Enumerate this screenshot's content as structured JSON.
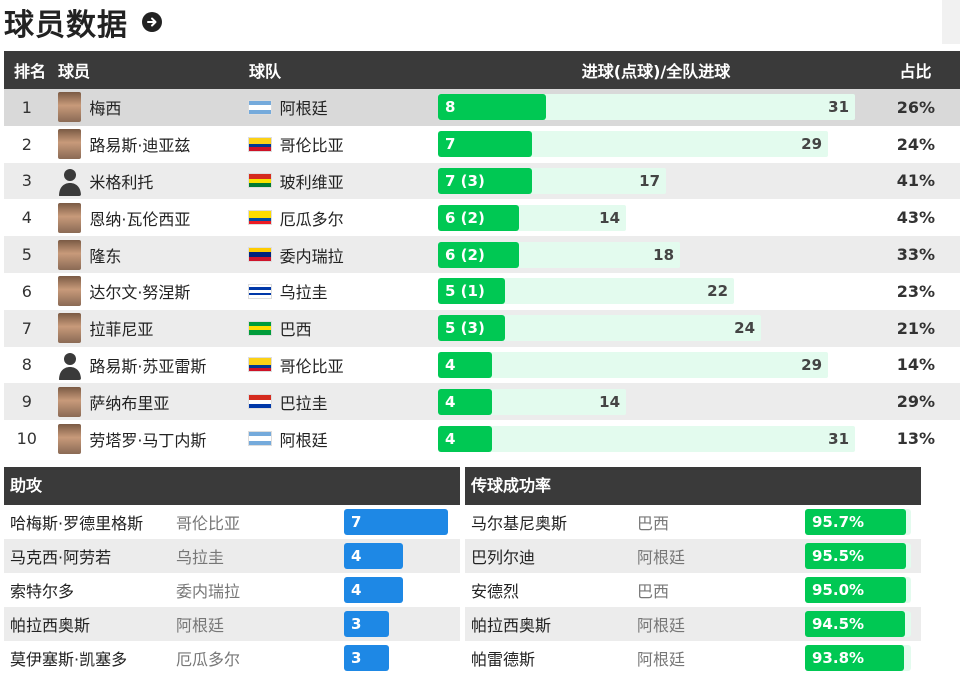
{
  "page": {
    "title": "球员数据"
  },
  "scorers": {
    "headers": {
      "rank": "排名",
      "player": "球员",
      "team": "球队",
      "goals": "进球(点球)/全队进球",
      "pct": "占比"
    },
    "rows": [
      {
        "rank": "1",
        "player": "梅西",
        "team": "阿根廷",
        "goals_label": "8",
        "goals": 8,
        "total": 31,
        "pct": "26%",
        "avatar": "photo",
        "flag": [
          "#75aadb",
          "#ffffff",
          "#75aadb"
        ]
      },
      {
        "rank": "2",
        "player": "路易斯·迪亚兹",
        "team": "哥伦比亚",
        "goals_label": "7",
        "goals": 7,
        "total": 29,
        "pct": "24%",
        "avatar": "photo",
        "flag": [
          "#fcd116",
          "#fcd116",
          "#003893",
          "#ce1126"
        ]
      },
      {
        "rank": "3",
        "player": "米格利托",
        "team": "玻利维亚",
        "goals_label": "7 (3)",
        "goals": 7,
        "total": 17,
        "pct": "41%",
        "avatar": "silhouette",
        "flag": [
          "#d52b1e",
          "#f9e300",
          "#007934"
        ]
      },
      {
        "rank": "4",
        "player": "恩纳·瓦伦西亚",
        "team": "厄瓜多尔",
        "goals_label": "6 (2)",
        "goals": 6,
        "total": 14,
        "pct": "43%",
        "avatar": "photo",
        "flag": [
          "#ffdd00",
          "#ffdd00",
          "#034ea2",
          "#ed1c24"
        ]
      },
      {
        "rank": "5",
        "player": "隆东",
        "team": "委内瑞拉",
        "goals_label": "6 (2)",
        "goals": 6,
        "total": 18,
        "pct": "33%",
        "avatar": "photo",
        "flag": [
          "#ffcc00",
          "#00247d",
          "#cf142b"
        ]
      },
      {
        "rank": "6",
        "player": "达尔文·努涅斯",
        "team": "乌拉圭",
        "goals_label": "5 (1)",
        "goals": 5,
        "total": 22,
        "pct": "23%",
        "avatar": "photo",
        "flag": [
          "#ffffff",
          "#0038a8",
          "#ffffff",
          "#0038a8",
          "#ffffff"
        ]
      },
      {
        "rank": "7",
        "player": "拉菲尼亚",
        "team": "巴西",
        "goals_label": "5 (3)",
        "goals": 5,
        "total": 24,
        "pct": "21%",
        "avatar": "photo",
        "flag": [
          "#009c3b",
          "#ffdf00",
          "#009c3b"
        ]
      },
      {
        "rank": "8",
        "player": "路易斯·苏亚雷斯",
        "team": "哥伦比亚",
        "goals_label": "4",
        "goals": 4,
        "total": 29,
        "pct": "14%",
        "avatar": "silhouette",
        "flag": [
          "#fcd116",
          "#fcd116",
          "#003893",
          "#ce1126"
        ]
      },
      {
        "rank": "9",
        "player": "萨纳布里亚",
        "team": "巴拉圭",
        "goals_label": "4",
        "goals": 4,
        "total": 14,
        "pct": "29%",
        "avatar": "photo",
        "flag": [
          "#d52b1e",
          "#ffffff",
          "#0038a8"
        ]
      },
      {
        "rank": "10",
        "player": "劳塔罗·马丁内斯",
        "team": "阿根廷",
        "goals_label": "4",
        "goals": 4,
        "total": 31,
        "pct": "13%",
        "avatar": "photo",
        "flag": [
          "#75aadb",
          "#ffffff",
          "#75aadb"
        ]
      }
    ],
    "bar_max_total": 32
  },
  "assists": {
    "title": "助攻",
    "rows": [
      {
        "player": "哈梅斯·罗德里格斯",
        "team": "哥伦比亚",
        "label": "7",
        "value": 7
      },
      {
        "player": "马克西·阿劳若",
        "team": "乌拉圭",
        "label": "4",
        "value": 4
      },
      {
        "player": "索特尔多",
        "team": "委内瑞拉",
        "label": "4",
        "value": 4
      },
      {
        "player": "帕拉西奥斯",
        "team": "阿根廷",
        "label": "3",
        "value": 3
      },
      {
        "player": "莫伊塞斯·凯塞多",
        "team": "厄瓜多尔",
        "label": "3",
        "value": 3
      }
    ],
    "max_value": 7
  },
  "passing": {
    "title": "传球成功率",
    "rows": [
      {
        "player": "马尔基尼奥斯",
        "team": "巴西",
        "label": "95.7%",
        "value": 95.7
      },
      {
        "player": "巴列尔迪",
        "team": "阿根廷",
        "label": "95.5%",
        "value": 95.5
      },
      {
        "player": "安德烈",
        "team": "巴西",
        "label": "95.0%",
        "value": 95.0
      },
      {
        "player": "帕拉西奥斯",
        "team": "阿根廷",
        "label": "94.5%",
        "value": 94.5
      },
      {
        "player": "帕雷德斯",
        "team": "阿根廷",
        "label": "93.8%",
        "value": 93.8
      }
    ]
  }
}
